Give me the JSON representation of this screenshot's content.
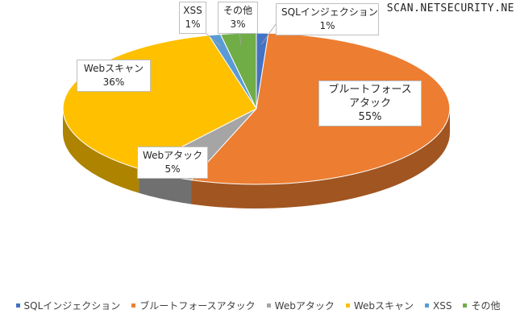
{
  "watermark": "SCAN.NETSECURITY.NE",
  "chart_data": {
    "type": "pie",
    "style": "3d",
    "categories": [
      "SQLインジェクション",
      "ブルートフォースアタック",
      "Webアタック",
      "Webスキャン",
      "XSS",
      "その他"
    ],
    "values": [
      1,
      55,
      5,
      36,
      1,
      3
    ],
    "labels": [
      "1%",
      "55%",
      "5%",
      "36%",
      "1%",
      "3%"
    ],
    "colors": [
      "#4472C4",
      "#ED7D31",
      "#A5A5A5",
      "#FFC000",
      "#5B9BD5",
      "#70AD47"
    ],
    "legend": "bottom"
  }
}
